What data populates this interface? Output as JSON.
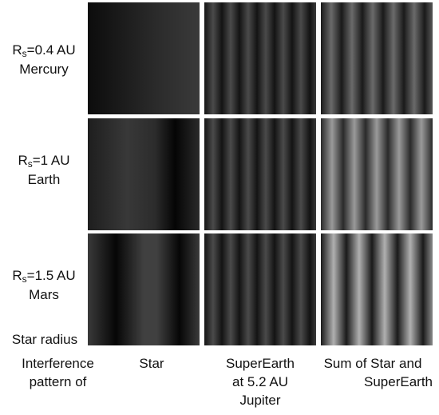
{
  "row_labels": [
    {
      "symbol": "R",
      "subscript": "s",
      "value": "=0.4 AU",
      "planet": "Mercury"
    },
    {
      "symbol": "R",
      "subscript": "s",
      "value": "=1 AU",
      "planet": "Earth"
    },
    {
      "symbol": "R",
      "subscript": "s",
      "value": "=1.5 AU",
      "planet": "Mars"
    }
  ],
  "row_axis_label": "Star radius",
  "column_axis_label": [
    "Interference",
    "pattern of"
  ],
  "column_labels": [
    [
      "Star"
    ],
    [
      "SuperEarth",
      "at 5.2 AU",
      "Jupiter"
    ],
    [
      "Sum of Star and",
      "SuperEarth"
    ]
  ]
}
